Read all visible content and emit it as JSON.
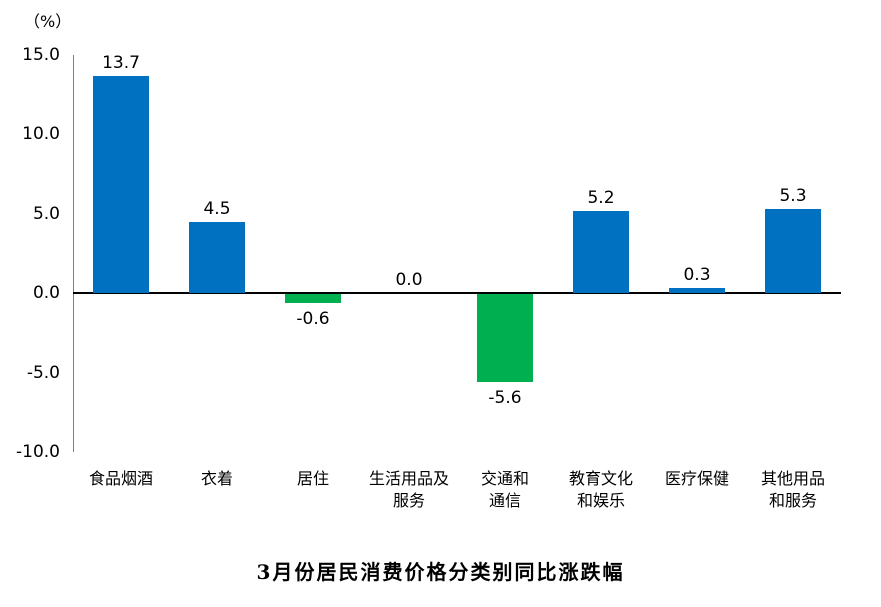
{
  "chart_data": {
    "type": "bar",
    "title": "3月份居民消费价格分类别同比涨跌幅",
    "ylabel": "（%）",
    "xlabel": "",
    "categories": [
      "食品烟酒",
      "衣着",
      "居住",
      "生活用品及服务",
      "交通和通信",
      "教育文化和娱乐",
      "医疗保健",
      "其他用品和服务"
    ],
    "category_label_lines": [
      [
        "食品烟酒"
      ],
      [
        "衣着"
      ],
      [
        "居住"
      ],
      [
        "生活用品及",
        "服务"
      ],
      [
        "交通和",
        "通信"
      ],
      [
        "教育文化",
        "和娱乐"
      ],
      [
        "医疗保健"
      ],
      [
        "其他用品",
        "和服务"
      ]
    ],
    "values": [
      13.7,
      4.5,
      -0.6,
      0.0,
      -5.6,
      5.2,
      0.3,
      5.3
    ],
    "value_labels": [
      "13.7",
      "4.5",
      "-0.6",
      "0.0",
      "-5.6",
      "5.2",
      "0.3",
      "5.3"
    ],
    "ylim": [
      -10,
      15
    ],
    "yticks": [
      15,
      10,
      5,
      0,
      -5,
      -10
    ],
    "ytick_labels": [
      "15.0",
      "10.0",
      "5.0",
      "0.0",
      "-5.0",
      "-10.0"
    ],
    "grid": false,
    "legend": "none",
    "positive_color": "#0070C0",
    "negative_color": "#00B050",
    "axis_line_color": "#7f7f7f",
    "zero_line_color": "#000000"
  }
}
